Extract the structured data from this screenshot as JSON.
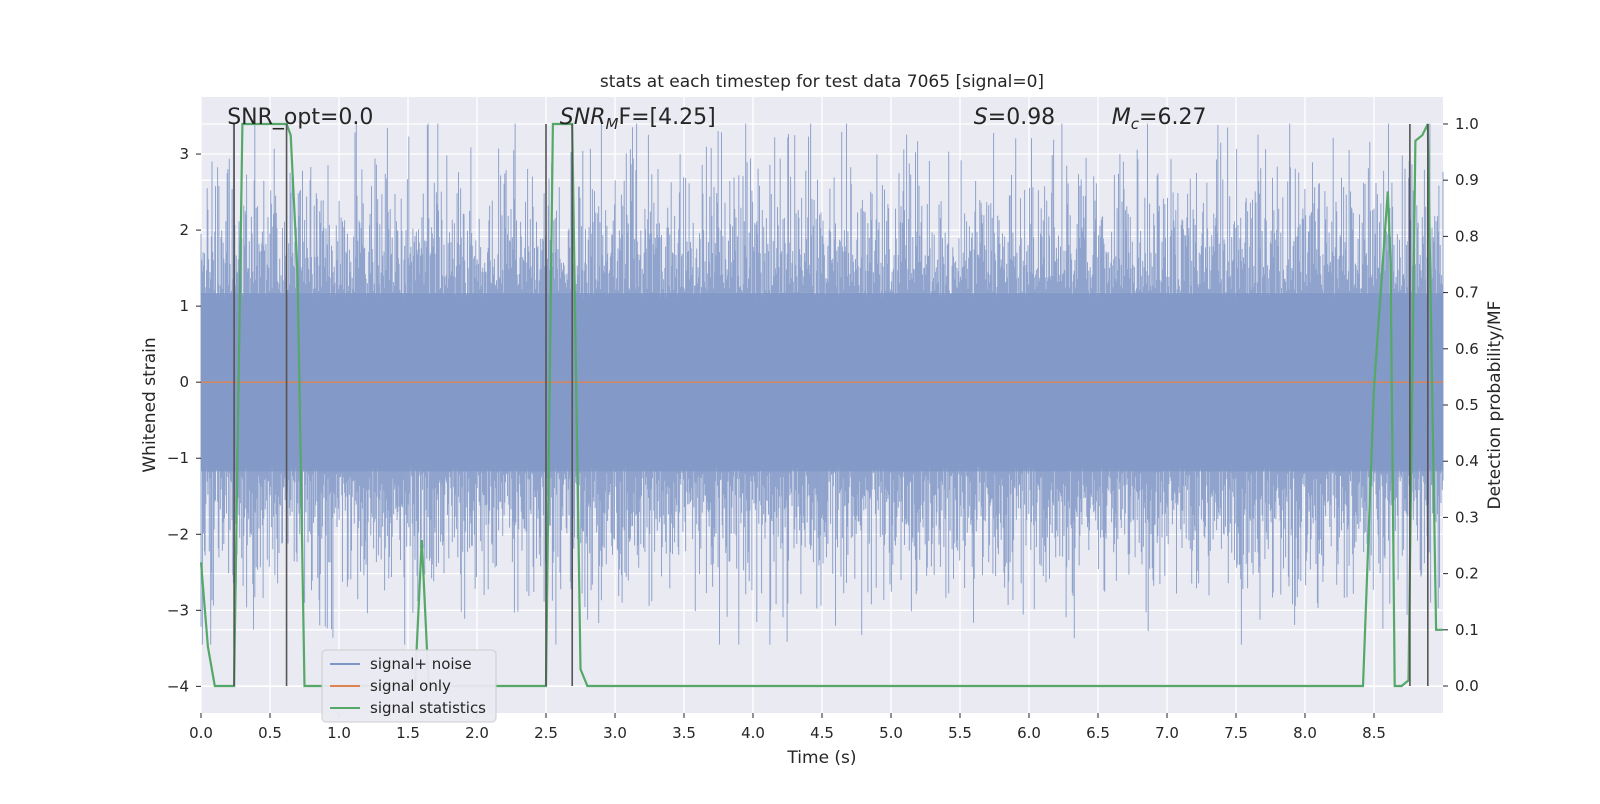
{
  "chart_data": {
    "type": "line",
    "title": "stats at each timestep for test data 7065 [signal=0]",
    "xlabel": "Time (s)",
    "ylabel": "Whitened strain",
    "y2label": "Detection probability/MF",
    "xlim": [
      0.0,
      9.0
    ],
    "ylim": [
      -4.35,
      3.75
    ],
    "y2lim": [
      -0.048,
      1.048
    ],
    "grid": true,
    "legend_position": "lower-left",
    "x_ticks": [
      0.0,
      0.5,
      1.0,
      1.5,
      2.0,
      2.5,
      3.0,
      3.5,
      4.0,
      4.5,
      5.0,
      5.5,
      6.0,
      6.5,
      7.0,
      7.5,
      8.0,
      8.5
    ],
    "x_tick_labels": [
      "0.0",
      "0.5",
      "1.0",
      "1.5",
      "2.0",
      "2.5",
      "3.0",
      "3.5",
      "4.0",
      "4.5",
      "5.0",
      "5.5",
      "6.0",
      "6.5",
      "7.0",
      "7.5",
      "8.0",
      "8.5"
    ],
    "y_ticks": [
      -4,
      -3,
      -2,
      -1,
      0,
      1,
      2,
      3
    ],
    "y_tick_labels": [
      "−4",
      "−3",
      "−2",
      "−1",
      "0",
      "1",
      "2",
      "3"
    ],
    "y2_ticks": [
      0.0,
      0.1,
      0.2,
      0.3,
      0.4,
      0.5,
      0.6,
      0.7,
      0.8,
      0.9,
      1.0
    ],
    "y2_tick_labels": [
      "0.0",
      "0.1",
      "0.2",
      "0.3",
      "0.4",
      "0.5",
      "0.6",
      "0.7",
      "0.8",
      "0.9",
      "1.0"
    ],
    "annotations": [
      {
        "id": "snr-opt",
        "text": "SNR_opt=0.0",
        "x": 0.19
      },
      {
        "id": "snr-mf",
        "text": "SNR_MF=[4.25]",
        "x": 2.6,
        "base": "SNR",
        "sub": "M",
        "rest": "F=[4.25]"
      },
      {
        "id": "s-stat",
        "text": "S=0.98",
        "x": 5.6,
        "base": "S",
        "sub": "",
        "rest": "=0.98"
      },
      {
        "id": "mc-stat",
        "text": "M_c=6.27",
        "x": 6.6,
        "base": "M",
        "sub": "c",
        "rest": "=6.27"
      }
    ],
    "detection_lines_x": [
      0.24,
      0.62,
      2.5,
      2.69,
      8.76,
      8.89
    ],
    "series": [
      {
        "name": "signal+ noise",
        "color": "#7f97c6",
        "style": "noise",
        "axis": "left",
        "n_samples": 1800,
        "core_sigma": 0.85,
        "peak_max": 3.4,
        "trough_min": -3.45
      },
      {
        "name": "signal only",
        "color": "#dd8452",
        "axis": "left",
        "x": [
          0.0,
          9.0
        ],
        "y": [
          0.0,
          0.0
        ]
      },
      {
        "name": "signal statistics",
        "color": "#55a868",
        "axis": "right",
        "x": [
          0.0,
          0.05,
          0.1,
          0.15,
          0.2,
          0.24,
          0.3,
          0.35,
          0.4,
          0.5,
          0.6,
          0.62,
          0.65,
          0.7,
          0.75,
          0.8,
          0.9,
          1.0,
          1.1,
          1.2,
          1.3,
          1.4,
          1.5,
          1.55,
          1.6,
          1.65,
          1.7,
          1.75,
          1.8,
          1.9,
          2.0,
          2.2,
          2.4,
          2.5,
          2.55,
          2.6,
          2.65,
          2.69,
          2.75,
          2.8,
          3.0,
          4.0,
          5.0,
          6.0,
          7.0,
          8.0,
          8.4,
          8.42,
          8.5,
          8.6,
          8.62,
          8.65,
          8.7,
          8.75,
          8.8,
          8.85,
          8.89,
          8.95,
          9.0
        ],
        "y": [
          0.22,
          0.07,
          0.0,
          0.0,
          0.0,
          0.0,
          1.0,
          1.0,
          1.0,
          1.0,
          1.0,
          1.0,
          0.98,
          0.73,
          0.0,
          0.0,
          0.0,
          0.0,
          0.0,
          0.0,
          0.0,
          0.0,
          0.0,
          0.0,
          0.26,
          0.0,
          0.0,
          0.0,
          0.0,
          0.0,
          0.0,
          0.0,
          0.0,
          0.0,
          1.0,
          1.0,
          1.0,
          1.0,
          0.03,
          0.0,
          0.0,
          0.0,
          0.0,
          0.0,
          0.0,
          0.0,
          0.0,
          0.0,
          0.53,
          0.88,
          0.75,
          0.0,
          0.0,
          0.01,
          0.97,
          0.98,
          1.0,
          0.1,
          0.1
        ]
      }
    ]
  }
}
